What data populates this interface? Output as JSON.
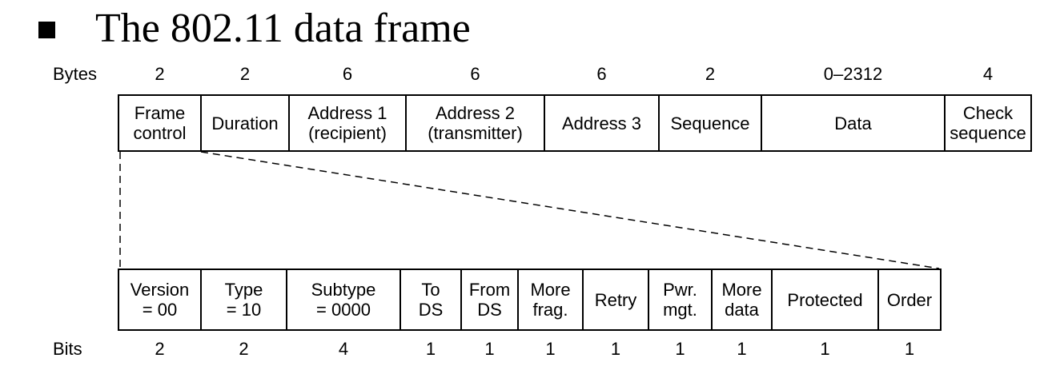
{
  "title": "The 802.11 data frame",
  "top_row_label": "Bytes",
  "bottom_row_label": "Bits",
  "frame_fields": [
    {
      "label": "Frame\ncontrol",
      "size": "2"
    },
    {
      "label": "Duration",
      "size": "2"
    },
    {
      "label": "Address 1\n(recipient)",
      "size": "6"
    },
    {
      "label": "Address 2\n(transmitter)",
      "size": "6"
    },
    {
      "label": "Address 3",
      "size": "6"
    },
    {
      "label": "Sequence",
      "size": "2"
    },
    {
      "label": "Data",
      "size": "0–2312"
    },
    {
      "label": "Check\nsequence",
      "size": "4"
    }
  ],
  "control_fields": [
    {
      "label": "Version\n= 00",
      "size": "2"
    },
    {
      "label": "Type\n= 10",
      "size": "2"
    },
    {
      "label": "Subtype\n= 0000",
      "size": "4"
    },
    {
      "label": "To\nDS",
      "size": "1"
    },
    {
      "label": "From\nDS",
      "size": "1"
    },
    {
      "label": "More\nfrag.",
      "size": "1"
    },
    {
      "label": "Retry",
      "size": "1"
    },
    {
      "label": "Pwr.\nmgt.",
      "size": "1"
    },
    {
      "label": "More\ndata",
      "size": "1"
    },
    {
      "label": "Protected",
      "size": "1"
    },
    {
      "label": "Order",
      "size": "1"
    }
  ]
}
